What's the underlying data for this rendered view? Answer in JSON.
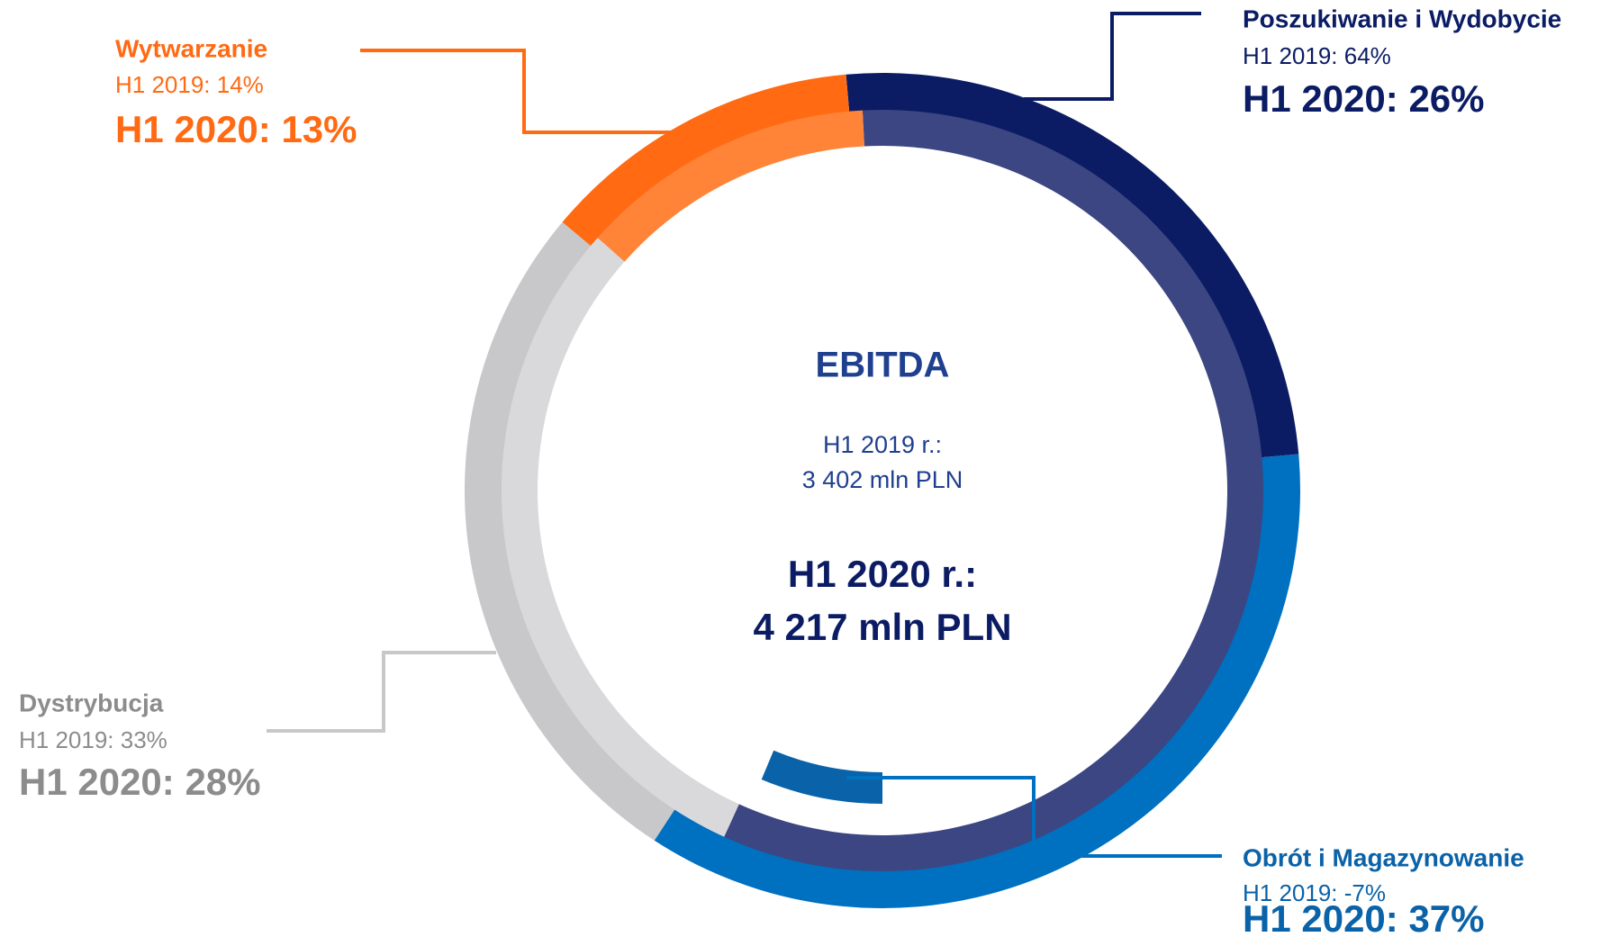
{
  "chart_data": {
    "type": "donut",
    "title": "EBITDA",
    "subtitle_prev": [
      "H1 2019 r.:",
      "3 402 mln PLN"
    ],
    "subtitle_curr": [
      "H1 2020 r.:",
      "4 217 mln PLN"
    ],
    "categories": [
      "Poszukiwanie i Wydobycie",
      "Obrót i Magazynowanie",
      "Dystrybucja",
      "Wytwarzanie"
    ],
    "series": [
      {
        "name": "H1 2019",
        "values": [
          64,
          -7,
          33,
          14
        ],
        "value_labels": [
          "H1 2019: 64%",
          "H1 2019: -7%",
          "H1 2019: 33%",
          "H1 2019: 14%"
        ],
        "colors": [
          "#3b4682",
          "#0a62a8",
          "#d9d9db",
          "#ff8438"
        ]
      },
      {
        "name": "H1 2020",
        "values": [
          26,
          37,
          28,
          13
        ],
        "value_labels": [
          "H1 2020: 26%",
          "H1 2020: 37%",
          "H1 2020: 28%",
          "H1 2020: 13%"
        ],
        "colors": [
          "#0b1c64",
          "#0070c0",
          "#c8c8ca",
          "#ff6a13"
        ]
      }
    ]
  }
}
